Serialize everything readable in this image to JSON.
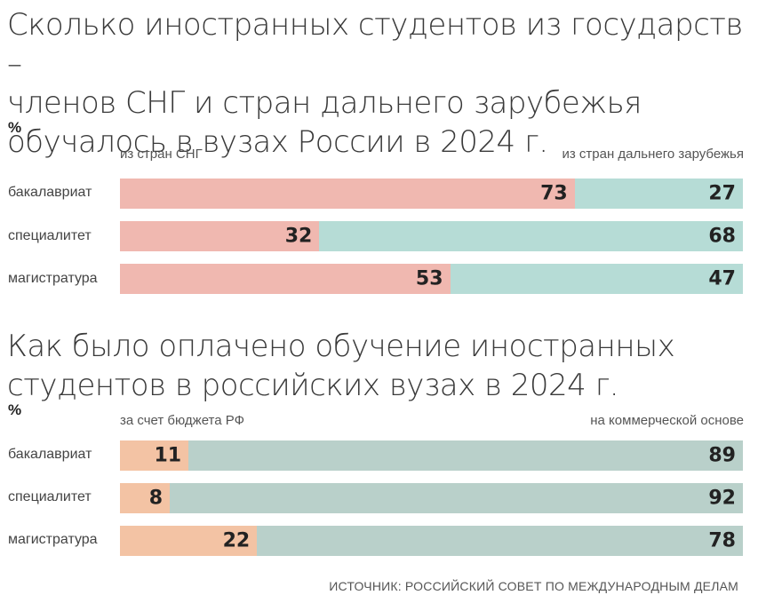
{
  "chart_data": [
    {
      "type": "bar",
      "orientation": "horizontal",
      "stacked": true,
      "title": "Сколько иностранных студентов из государств –\nчленов СНГ и стран дальнего зарубежья\nобучалось в вузах России в 2024 г.",
      "unit": "%",
      "categories": [
        "бакалавриат",
        "специалитет",
        "магистратура"
      ],
      "series": [
        {
          "name": "из стран СНГ",
          "values": [
            73,
            32,
            53
          ],
          "color": "#f0b8b0"
        },
        {
          "name": "из стран дальнего зарубежья",
          "values": [
            27,
            68,
            47
          ],
          "color": "#b6dcd6"
        }
      ],
      "xlim": [
        0,
        100
      ],
      "legend": "top",
      "grid": false
    },
    {
      "type": "bar",
      "orientation": "horizontal",
      "stacked": true,
      "title": "Как было оплачено обучение иностранных\nстудентов в российских вузах в 2024 г.",
      "unit": "%",
      "categories": [
        "бакалавриат",
        "специалитет",
        "магистратура"
      ],
      "series": [
        {
          "name": "за счет бюджета РФ",
          "values": [
            11,
            8,
            22
          ],
          "color": "#f3c3a4"
        },
        {
          "name": "на коммерческой основе",
          "values": [
            89,
            92,
            78
          ],
          "color": "#b9d0ca"
        }
      ],
      "xlim": [
        0,
        100
      ],
      "legend": "top",
      "grid": false
    }
  ],
  "source": "ИСТОЧНИК: РОССИЙСКИЙ СОВЕТ ПО МЕЖДУНАРОДНЫМ ДЕЛАМ"
}
